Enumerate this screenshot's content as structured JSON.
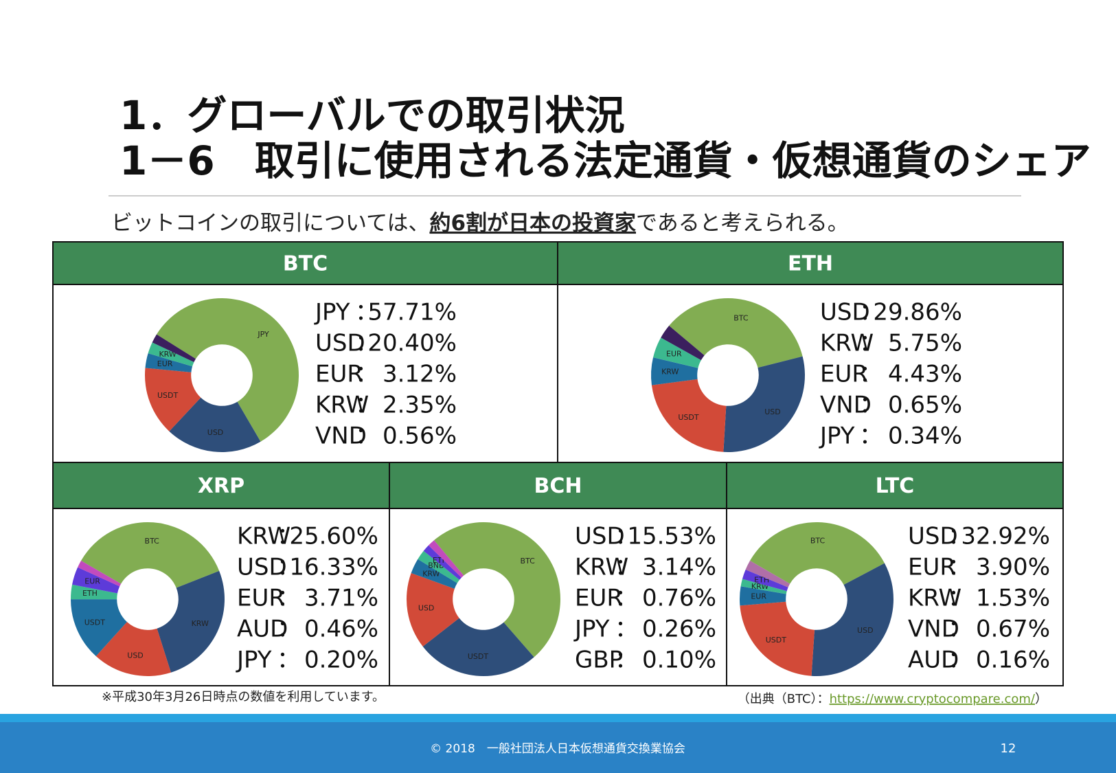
{
  "header": {
    "title_line1": "1．グローバルでの取引状況",
    "title_line2": "1－6　取引に使用される法定通貨・仮想通貨のシェア"
  },
  "summary": {
    "before": "ビットコインの取引については、",
    "emphasis": "約6割が日本の投資家",
    "after": "であると考えられる。"
  },
  "separator": "：",
  "panels": [
    {
      "title": "BTC",
      "shares": [
        {
          "currency": "JPY",
          "value": "57.71%"
        },
        {
          "currency": "USD",
          "value": "20.40%"
        },
        {
          "currency": "EUR",
          "value": "3.12%"
        },
        {
          "currency": "KRW",
          "value": "2.35%"
        },
        {
          "currency": "VND",
          "value": "0.56%"
        }
      ],
      "donut": [
        {
          "label": "JPY",
          "value": 57.7,
          "color": "#82ad52"
        },
        {
          "label": "USD",
          "value": 20.4,
          "color": "#2e4e7a"
        },
        {
          "label": "USDT",
          "value": 14.5,
          "color": "#d24a38"
        },
        {
          "label": "EUR",
          "value": 3.1,
          "color": "#1f6fa0"
        },
        {
          "label": "KRW",
          "value": 2.4,
          "color": "#3cb98f"
        },
        {
          "label": null,
          "value": 1.9,
          "color": "#3b1f5e"
        }
      ]
    },
    {
      "title": "ETH",
      "shares": [
        {
          "currency": "USD",
          "value": "29.86%"
        },
        {
          "currency": "KRW",
          "value": "5.75%"
        },
        {
          "currency": "EUR",
          "value": "4.43%"
        },
        {
          "currency": "VND",
          "value": "0.65%"
        },
        {
          "currency": "JPY",
          "value": "0.34%"
        }
      ],
      "donut": [
        {
          "label": "BTC",
          "value": 35,
          "color": "#82ad52"
        },
        {
          "label": "USD",
          "value": 29.9,
          "color": "#2e4e7a"
        },
        {
          "label": "USDT",
          "value": 22,
          "color": "#d24a38"
        },
        {
          "label": "KRW",
          "value": 5.8,
          "color": "#1f6fa0"
        },
        {
          "label": "EUR",
          "value": 4.4,
          "color": "#3cb98f"
        },
        {
          "label": null,
          "value": 3,
          "color": "#3b1f5e"
        }
      ]
    },
    {
      "title": "XRP",
      "shares": [
        {
          "currency": "KRW",
          "value": "25.60%"
        },
        {
          "currency": "USD",
          "value": "16.33%"
        },
        {
          "currency": "EUR",
          "value": "3.71%"
        },
        {
          "currency": "AUD",
          "value": "0.46%"
        },
        {
          "currency": "JPY",
          "value": "0.20%"
        }
      ],
      "donut": [
        {
          "label": "BTC",
          "value": 35,
          "color": "#82ad52"
        },
        {
          "label": "KRW",
          "value": 25.6,
          "color": "#2e4e7a"
        },
        {
          "label": "USD",
          "value": 16.3,
          "color": "#d24a38"
        },
        {
          "label": "USDT",
          "value": 13,
          "color": "#1f6fa0"
        },
        {
          "label": "ETH",
          "value": 3,
          "color": "#3cb98f"
        },
        {
          "label": "EUR",
          "value": 3.7,
          "color": "#5d3bd9"
        },
        {
          "label": null,
          "value": 1.5,
          "color": "#c24bbd"
        }
      ]
    },
    {
      "title": "BCH",
      "shares": [
        {
          "currency": "USD",
          "value": "15.53%"
        },
        {
          "currency": "KRW",
          "value": "3.14%"
        },
        {
          "currency": "EUR",
          "value": "0.76%"
        },
        {
          "currency": "JPY",
          "value": "0.26%"
        },
        {
          "currency": "GBP",
          "value": "0.10%"
        }
      ],
      "donut": [
        {
          "label": "BTC",
          "value": 48,
          "color": "#82ad52"
        },
        {
          "label": "USDT",
          "value": 25,
          "color": "#2e4e7a"
        },
        {
          "label": "USD",
          "value": 15.5,
          "color": "#d24a38"
        },
        {
          "label": "KRW",
          "value": 3.1,
          "color": "#1f6fa0"
        },
        {
          "label": "BNB",
          "value": 2,
          "color": "#3cb98f"
        },
        {
          "label": "ETH",
          "value": 1.5,
          "color": "#5d3bd9"
        },
        {
          "label": null,
          "value": 1.5,
          "color": "#c24bbd"
        }
      ]
    },
    {
      "title": "LTC",
      "shares": [
        {
          "currency": "USD",
          "value": "32.92%"
        },
        {
          "currency": "EUR",
          "value": "3.90%"
        },
        {
          "currency": "KRW",
          "value": "1.53%"
        },
        {
          "currency": "VND",
          "value": "0.67%"
        },
        {
          "currency": "AUD",
          "value": "0.16%"
        }
      ],
      "donut": [
        {
          "label": "BTC",
          "value": 33,
          "color": "#82ad52"
        },
        {
          "label": "USD",
          "value": 32.9,
          "color": "#2e4e7a"
        },
        {
          "label": "USDT",
          "value": 22,
          "color": "#d24a38"
        },
        {
          "label": "EUR",
          "value": 3.9,
          "color": "#1f6fa0"
        },
        {
          "label": "KRW",
          "value": 1.5,
          "color": "#3cb98f"
        },
        {
          "label": "ETH",
          "value": 2,
          "color": "#5d3bd9"
        },
        {
          "label": null,
          "value": 2,
          "color": "#b06fa8"
        }
      ]
    }
  ],
  "footnote": "※平成30年3月26日時点の数値を利用しています。",
  "source": {
    "before": "（出典（BTC）：",
    "link": "https://www.cryptocompare.com/",
    "after": "）"
  },
  "footer": {
    "copyright": "© 2018　一般社団法人日本仮想通貨交換業協会",
    "page": "12"
  }
}
